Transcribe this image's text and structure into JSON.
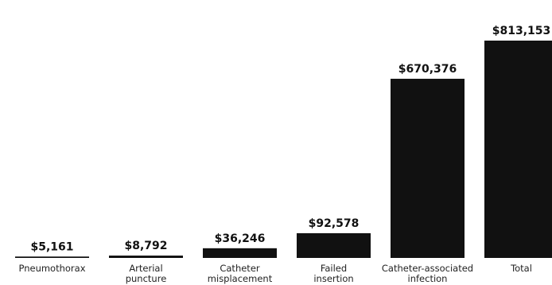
{
  "chart_data": {
    "type": "bar",
    "title": "",
    "xlabel": "",
    "ylabel": "",
    "categories": [
      [
        "Pneumothorax"
      ],
      [
        "Arterial",
        "puncture"
      ],
      [
        "Catheter",
        "misplacement"
      ],
      [
        "Failed",
        "insertion"
      ],
      [
        "Catheter-associated",
        "infection"
      ],
      [
        "Total"
      ]
    ],
    "values": [
      5161,
      8792,
      36246,
      92578,
      670376,
      813153
    ],
    "value_labels": [
      "$5,161",
      "$8,792",
      "$36,246",
      "$92,578",
      "$670,376",
      "$813,153"
    ],
    "ylim": [
      0,
      813153
    ],
    "grid": false,
    "bar_color": "#111111"
  }
}
